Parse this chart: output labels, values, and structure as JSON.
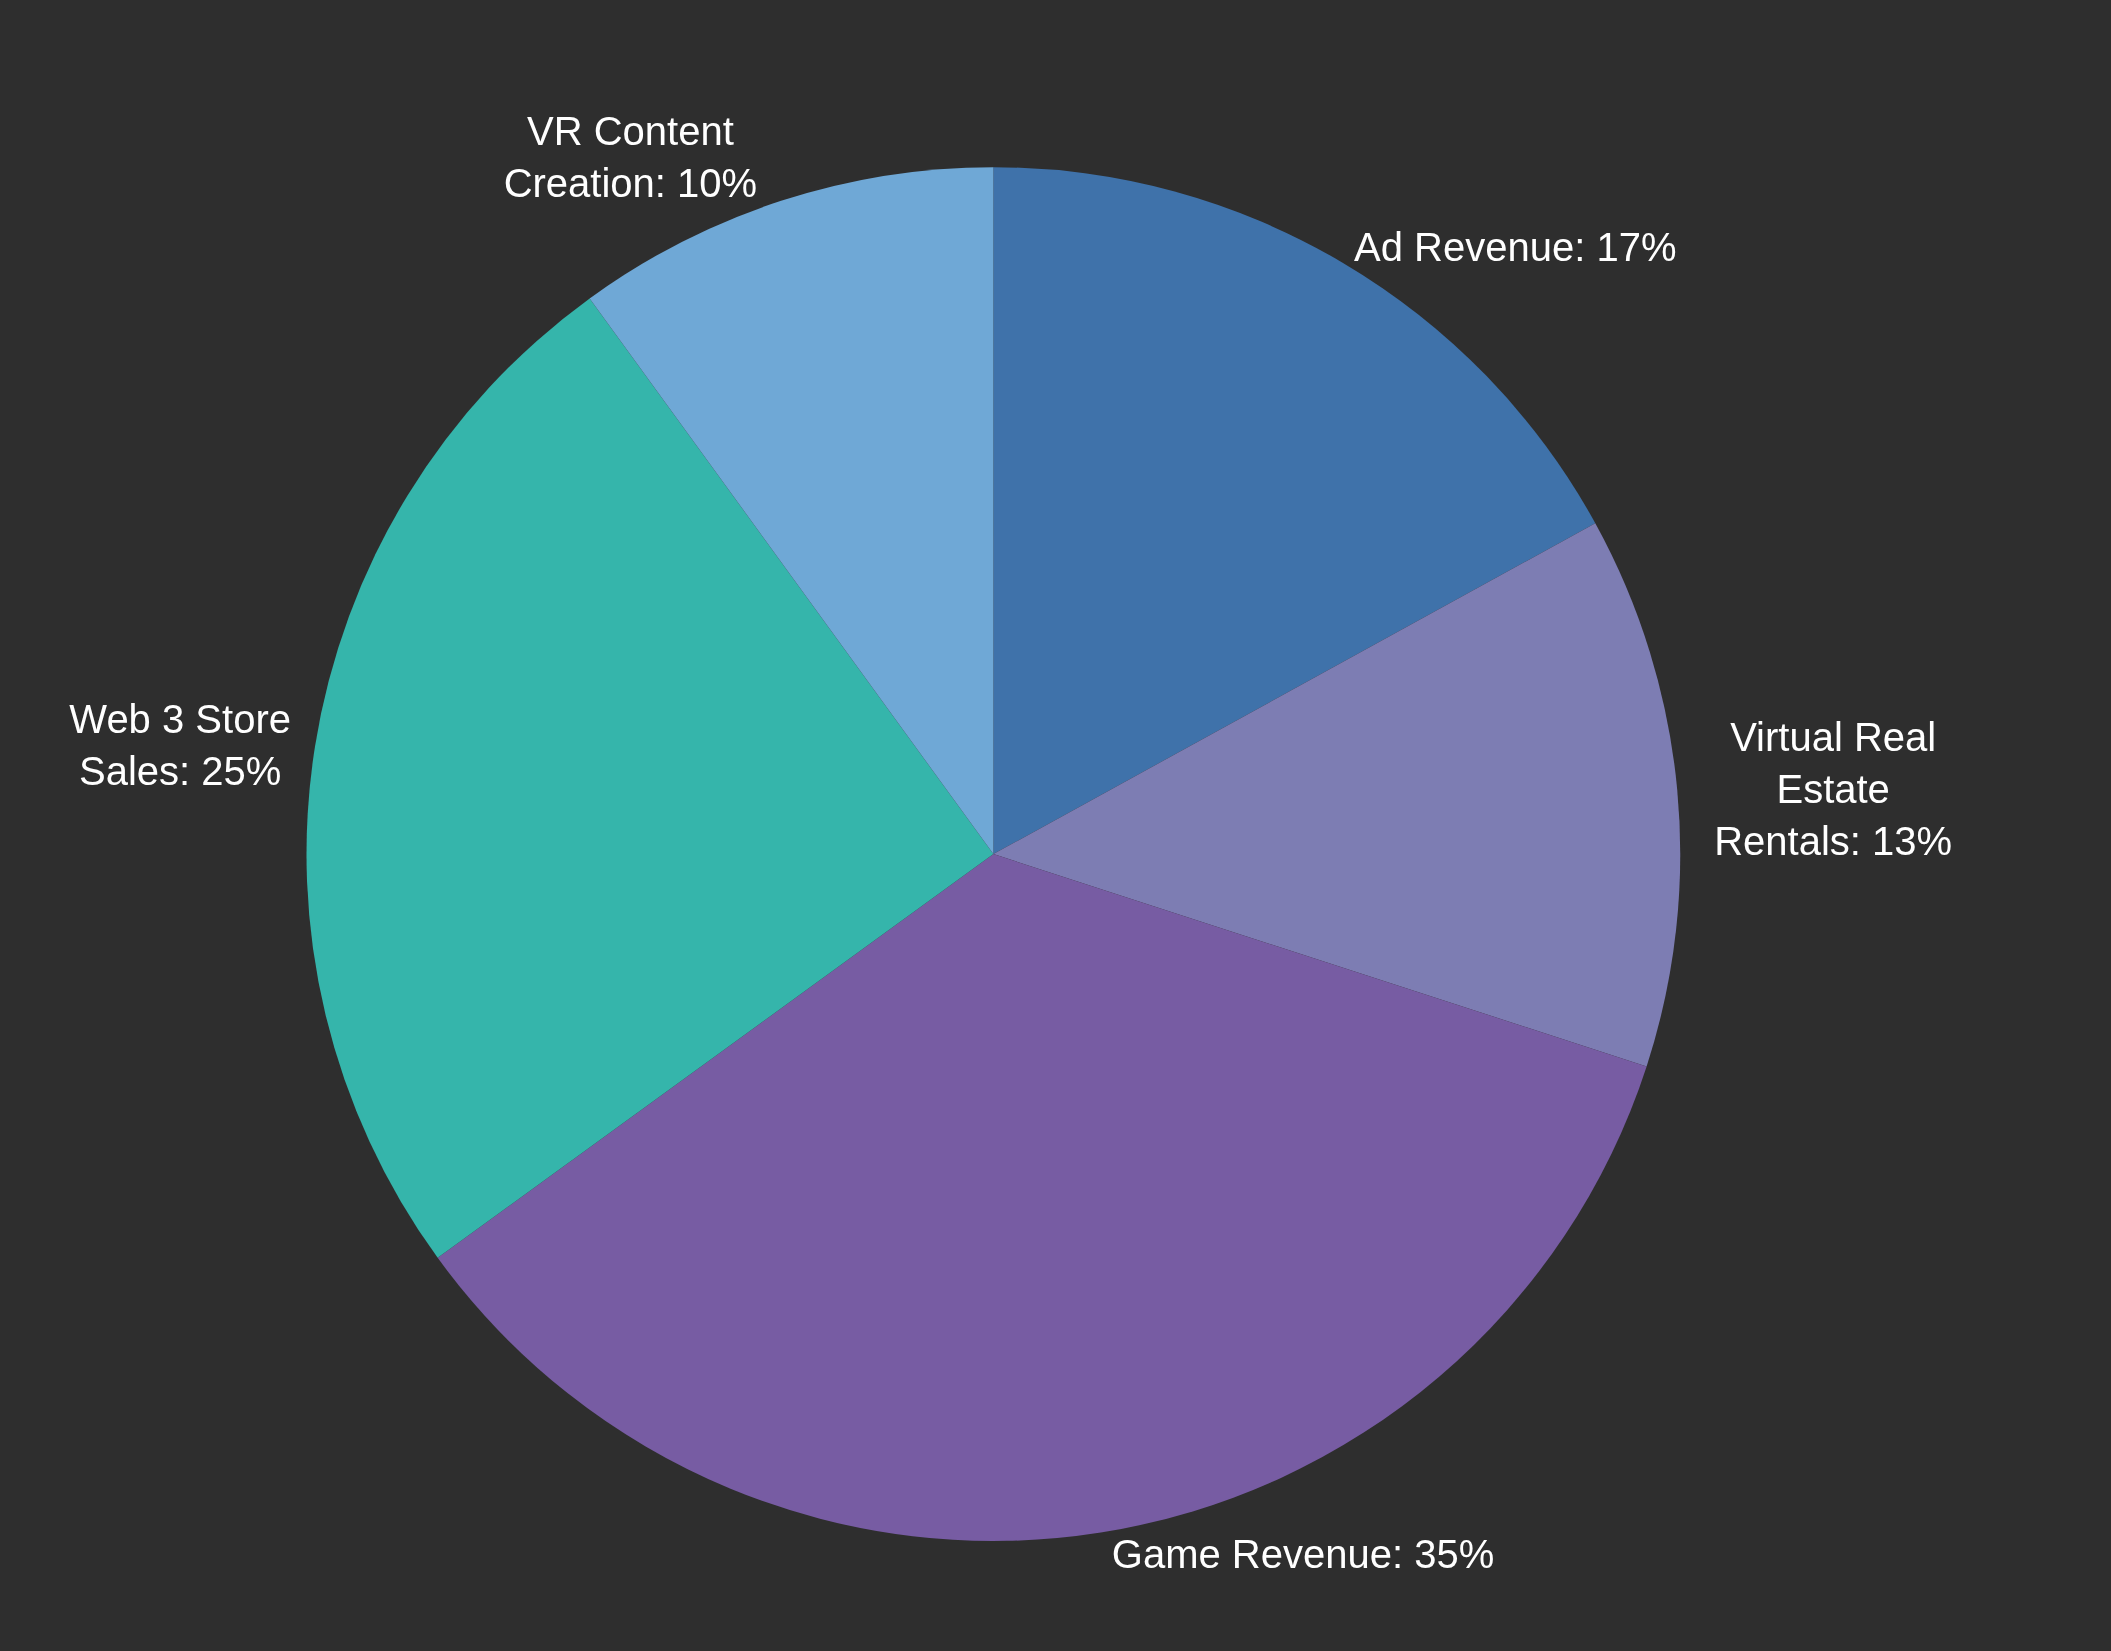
{
  "chart_data": {
    "type": "pie",
    "categories": [
      "Ad Revenue",
      "Virtual Real Estate Rentals",
      "Game Revenue",
      "Web 3 Store Sales",
      "VR Content Creation"
    ],
    "values": [
      17,
      13,
      35,
      25,
      10
    ],
    "value_labels": [
      "17%",
      "13%",
      "35%",
      "25%",
      "10%"
    ],
    "colors": [
      "#3f72aa",
      "#7d7db3",
      "#775ca3",
      "#35b5ab",
      "#6fa8d6"
    ],
    "legend": false
  }
}
